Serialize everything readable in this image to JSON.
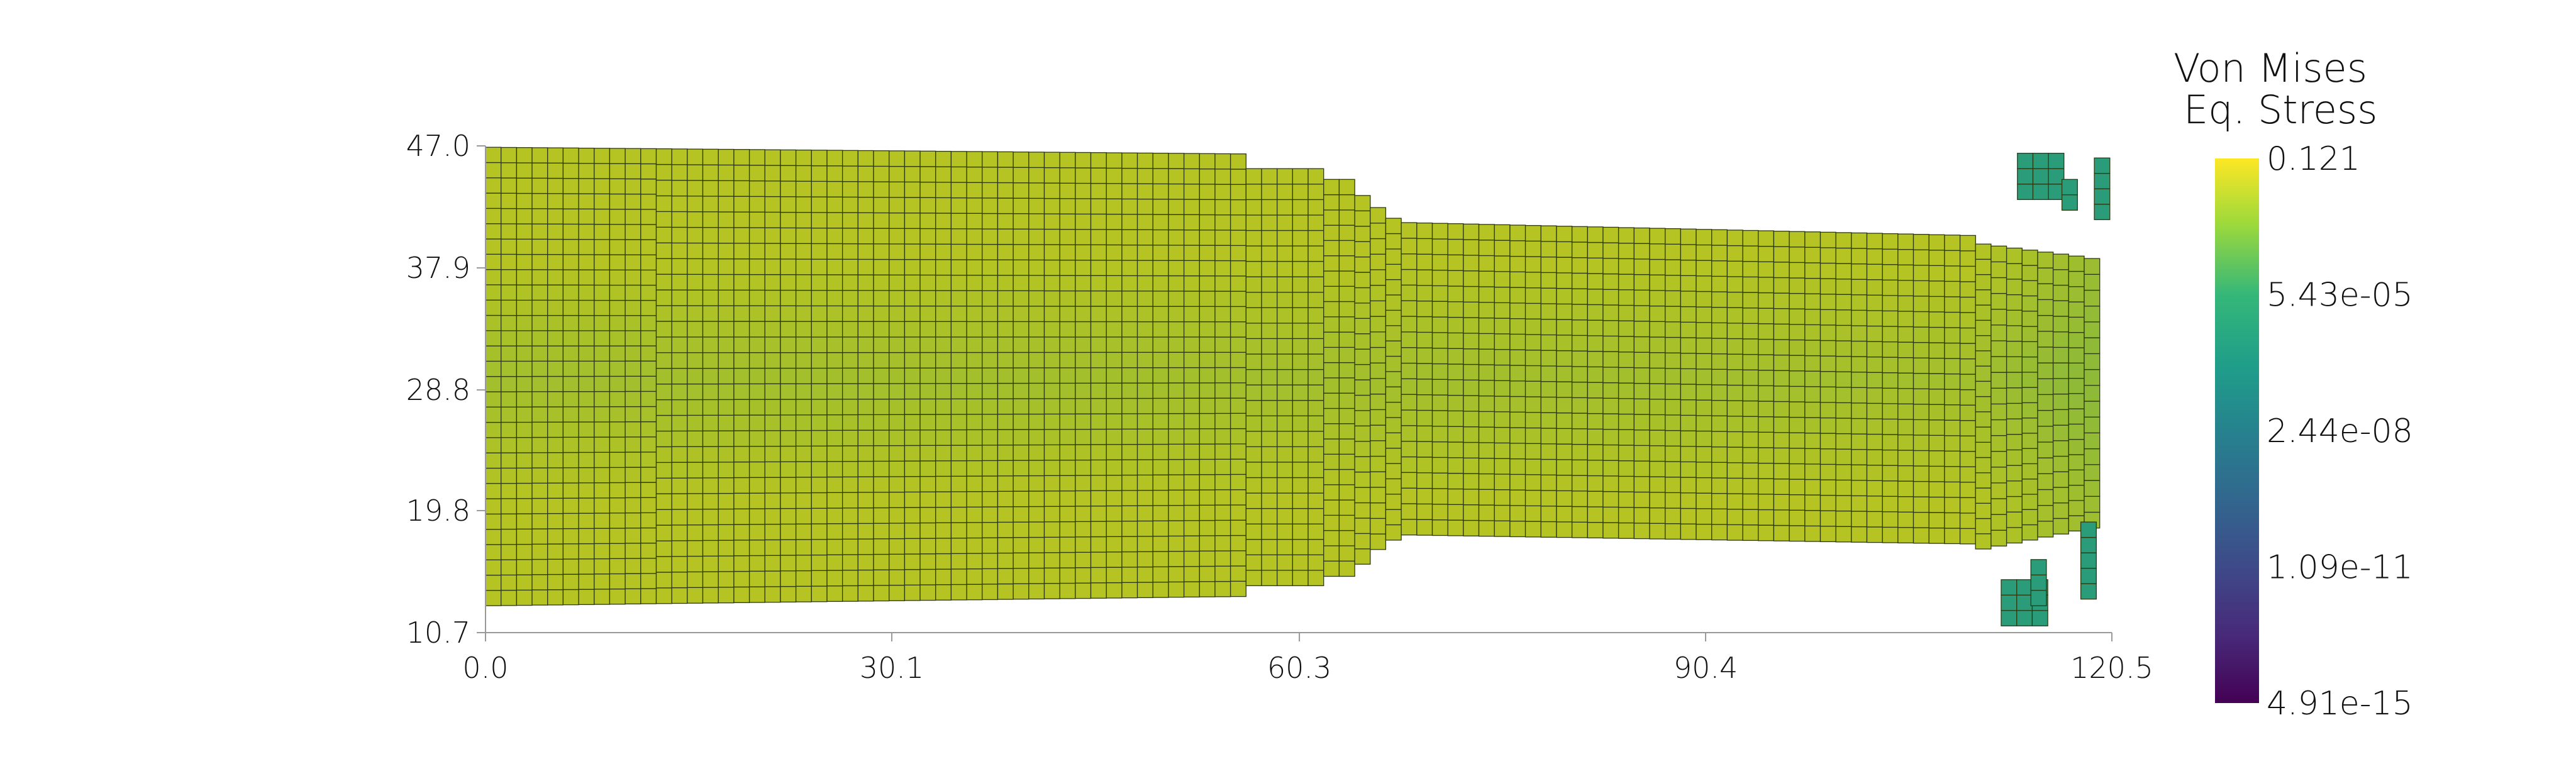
{
  "colorbar": {
    "title_line1": "Von Mises",
    "title_line2": "Eq. Stress",
    "labels": [
      "0.121",
      "5.43e-05",
      "2.44e-08",
      "1.09e-11",
      "4.91e-15"
    ],
    "colormap": "viridis"
  },
  "axes": {
    "x_ticks": [
      "0.0",
      "30.1",
      "60.3",
      "90.4",
      "120.5"
    ],
    "y_ticks": [
      "47.0",
      "37.9",
      "28.8",
      "19.8",
      "10.7"
    ],
    "x_range": [
      0.0,
      120.5
    ],
    "y_range": [
      10.7,
      47.0
    ]
  },
  "mesh": {
    "cell_size": 1.15,
    "base_color": "#b5c422",
    "low_color": "#8fba38",
    "edge_color": "#2d3a10"
  }
}
